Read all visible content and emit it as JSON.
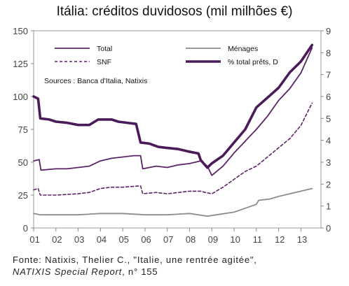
{
  "title": "Itália: créditos duvidosos (mil milhões €)",
  "sources_note": "Sources : Banca d'Italia, Natixis",
  "caption": {
    "line1": "Fonte:  Natixis, Thelier C., \"Italie, une rentrée agitée\",",
    "report": "NATIXIS Special Report",
    "report_suffix": ", n° 155"
  },
  "legend": [
    {
      "label": "Total",
      "series": "total"
    },
    {
      "label": "Ménages",
      "series": "menages"
    },
    {
      "label": "SNF",
      "series": "snf"
    },
    {
      "label": "% total prêts, D",
      "series": "pct"
    }
  ],
  "colors": {
    "total": "#5b2466",
    "menages": "#8c8c8c",
    "snf": "#5b2466",
    "pct": "#4b1a5a"
  },
  "chart_data": {
    "type": "line",
    "title": "Itália: créditos duvidosos (mil milhões €)",
    "xlabel": "",
    "ylabel": "",
    "x_ticks": [
      "01",
      "02",
      "03",
      "04",
      "05",
      "06",
      "07",
      "08",
      "09",
      "10",
      "11",
      "12",
      "13"
    ],
    "xlim": [
      2001,
      2013.9
    ],
    "ylim": [
      0,
      150
    ],
    "y_ticks": [
      0,
      25,
      50,
      75,
      100,
      125,
      150
    ],
    "y2lim": [
      0,
      9
    ],
    "y2_ticks": [
      0,
      1,
      2,
      3,
      4,
      5,
      6,
      7,
      8,
      9
    ],
    "grid": false,
    "legend_position": "top-left",
    "series": [
      {
        "name": "Total",
        "key": "total",
        "axis": "left",
        "style": "solid",
        "points": [
          [
            2001.0,
            51
          ],
          [
            2001.25,
            52
          ],
          [
            2001.33,
            44
          ],
          [
            2002.0,
            45
          ],
          [
            2002.5,
            45
          ],
          [
            2003.0,
            46
          ],
          [
            2003.5,
            47
          ],
          [
            2004.0,
            51
          ],
          [
            2004.5,
            53
          ],
          [
            2005.0,
            54
          ],
          [
            2005.5,
            55
          ],
          [
            2005.8,
            55
          ],
          [
            2005.9,
            45
          ],
          [
            2006.5,
            47
          ],
          [
            2007.0,
            46
          ],
          [
            2007.5,
            48
          ],
          [
            2008.0,
            49
          ],
          [
            2008.5,
            51
          ],
          [
            2008.8,
            47
          ],
          [
            2009.0,
            40
          ],
          [
            2009.5,
            47
          ],
          [
            2010.0,
            57
          ],
          [
            2010.5,
            66
          ],
          [
            2011.0,
            75
          ],
          [
            2011.5,
            85
          ],
          [
            2012.0,
            97
          ],
          [
            2012.5,
            106
          ],
          [
            2013.0,
            118
          ],
          [
            2013.5,
            137
          ]
        ]
      },
      {
        "name": "Ménages",
        "key": "menages",
        "axis": "left",
        "style": "solid",
        "points": [
          [
            2001.0,
            11
          ],
          [
            2001.3,
            10
          ],
          [
            2002.0,
            10
          ],
          [
            2003.0,
            10
          ],
          [
            2004.0,
            11
          ],
          [
            2005.0,
            11
          ],
          [
            2006.0,
            10
          ],
          [
            2007.0,
            10
          ],
          [
            2008.0,
            11
          ],
          [
            2008.8,
            9
          ],
          [
            2009.2,
            10
          ],
          [
            2010.0,
            12
          ],
          [
            2010.5,
            15
          ],
          [
            2011.0,
            18
          ],
          [
            2011.1,
            21
          ],
          [
            2011.6,
            22
          ],
          [
            2012.0,
            24
          ],
          [
            2012.5,
            26
          ],
          [
            2013.0,
            28
          ],
          [
            2013.5,
            30
          ]
        ]
      },
      {
        "name": "SNF",
        "key": "snf",
        "axis": "left",
        "style": "dashed",
        "points": [
          [
            2001.0,
            29
          ],
          [
            2001.2,
            30
          ],
          [
            2001.3,
            25
          ],
          [
            2002.0,
            25
          ],
          [
            2003.0,
            26
          ],
          [
            2003.5,
            27
          ],
          [
            2004.0,
            30
          ],
          [
            2004.5,
            31
          ],
          [
            2005.0,
            31
          ],
          [
            2005.8,
            32
          ],
          [
            2005.9,
            26
          ],
          [
            2006.5,
            27
          ],
          [
            2007.0,
            26
          ],
          [
            2008.0,
            28
          ],
          [
            2008.5,
            28
          ],
          [
            2008.7,
            27
          ],
          [
            2009.0,
            26
          ],
          [
            2009.5,
            31
          ],
          [
            2010.0,
            37
          ],
          [
            2010.5,
            43
          ],
          [
            2011.0,
            47
          ],
          [
            2011.5,
            54
          ],
          [
            2012.0,
            61
          ],
          [
            2012.5,
            68
          ],
          [
            2013.0,
            78
          ],
          [
            2013.5,
            95
          ]
        ]
      },
      {
        "name": "% total prêts, D",
        "key": "pct",
        "axis": "right",
        "style": "bold",
        "points": [
          [
            2001.0,
            6.0
          ],
          [
            2001.2,
            5.9
          ],
          [
            2001.3,
            5.0
          ],
          [
            2001.7,
            4.95
          ],
          [
            2002.0,
            4.85
          ],
          [
            2002.5,
            4.8
          ],
          [
            2003.0,
            4.7
          ],
          [
            2003.5,
            4.7
          ],
          [
            2003.9,
            4.95
          ],
          [
            2004.5,
            4.95
          ],
          [
            2004.8,
            4.85
          ],
          [
            2005.2,
            4.8
          ],
          [
            2005.6,
            4.75
          ],
          [
            2005.8,
            3.9
          ],
          [
            2006.2,
            3.85
          ],
          [
            2006.6,
            3.7
          ],
          [
            2007.0,
            3.65
          ],
          [
            2007.5,
            3.6
          ],
          [
            2007.9,
            3.5
          ],
          [
            2008.4,
            3.4
          ],
          [
            2008.5,
            3.1
          ],
          [
            2008.8,
            2.75
          ],
          [
            2009.0,
            2.95
          ],
          [
            2009.5,
            3.3
          ],
          [
            2010.0,
            3.9
          ],
          [
            2010.5,
            4.5
          ],
          [
            2011.0,
            5.5
          ],
          [
            2011.5,
            5.95
          ],
          [
            2012.0,
            6.4
          ],
          [
            2012.5,
            7.1
          ],
          [
            2013.0,
            7.6
          ],
          [
            2013.5,
            8.35
          ]
        ]
      }
    ]
  }
}
